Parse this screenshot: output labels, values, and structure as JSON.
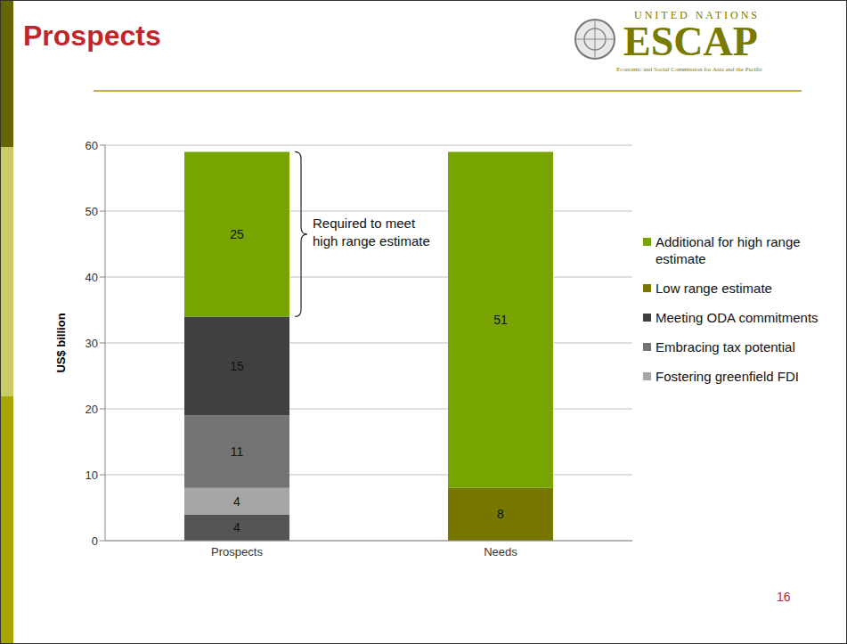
{
  "title": "Prospects",
  "logo": {
    "top": "UNITED NATIONS",
    "name": "ESCAP",
    "subtitle": "Economic and Social Commission for Asia and the Pacific"
  },
  "page_number": 16,
  "chart_data": {
    "type": "bar",
    "stacked": true,
    "categories": [
      "Prospects",
      "Needs"
    ],
    "y_label": "US$ billion",
    "ylim": [
      0,
      60
    ],
    "yticks": [
      0,
      10,
      20,
      30,
      40,
      50,
      60
    ],
    "grid": true,
    "data_labels": true,
    "legend": "right",
    "annotations": [
      {
        "text": "Required to meet high range estimate"
      }
    ],
    "series": [
      {
        "name": null,
        "color": "#555555",
        "values": [
          4,
          null
        ]
      },
      {
        "name": "Fostering greenfield FDI",
        "color": "#a6a6a6",
        "values": [
          4,
          null
        ]
      },
      {
        "name": "Embracing tax potential",
        "color": "#737373",
        "values": [
          11,
          null
        ]
      },
      {
        "name": "Meeting ODA commitments",
        "color": "#404040",
        "values": [
          15,
          null
        ]
      },
      {
        "name": "Low range estimate",
        "color": "#767600",
        "values": [
          null,
          8
        ]
      },
      {
        "name": "Additional for high range estimate",
        "color": "#77a400",
        "values": [
          25,
          51
        ]
      }
    ]
  }
}
